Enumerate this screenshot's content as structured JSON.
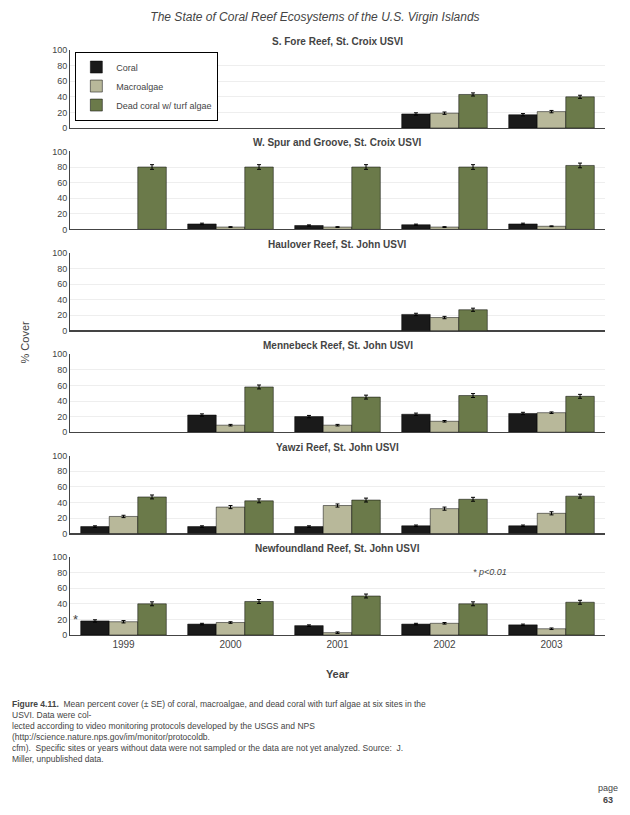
{
  "title": "The State of Coral Reef Ecosystems of the U.S. Virgin Islands",
  "ylabel": "% Cover",
  "xlabel": "Year",
  "annotations": [
    {
      "text": "Figure 4.11."
    },
    {
      "text": "  Mean percent cover (± SE) of coral, macroalgae, and dead coral with turf algae at six sites in the USVI. Data were col-\nlected according to video monitoring protocols developed by the USGS and NPS (http://science.nature.nps.gov/im/monitor/protocoldb.\ncfm).  Specific sites or years without data were not sampled or the data are not yet analyzed. Source:  J. Miller, unpublished data."
    },
    {
      "text": "page"
    },
    {
      "text": "63"
    }
  ],
  "chart_data": [
    {
      "type": "bar",
      "title": "S. Fore Reef, St. Croix USVI",
      "categories": [
        "1999",
        "2000",
        "2001",
        "2002",
        "2003"
      ],
      "series": [
        {
          "name": "Coral",
          "color": "#1a1a1a",
          "values": [
            null,
            null,
            null,
            18,
            17
          ],
          "errors": [
            null,
            null,
            null,
            1.5,
            1.5
          ]
        },
        {
          "name": "Macroalgae",
          "color": "#b8b89a",
          "values": [
            null,
            null,
            null,
            19,
            21
          ],
          "errors": [
            null,
            null,
            null,
            1.5,
            1.5
          ]
        },
        {
          "name": "Dead coral w/ turf algae",
          "color": "#6b7a4a",
          "values": [
            null,
            null,
            null,
            43,
            40
          ],
          "errors": [
            null,
            null,
            null,
            2.0,
            2.0
          ]
        }
      ],
      "ylim": [
        0,
        100
      ],
      "yticks": [
        0,
        20,
        40,
        60,
        80,
        100
      ],
      "grid": true,
      "legend": "upper left",
      "tick_labels": "y"
    },
    {
      "type": "bar",
      "title": "W. Spur and Groove, St. Croix USVI",
      "categories": [
        "1999",
        "2000",
        "2001",
        "2002",
        "2003"
      ],
      "series": [
        {
          "name": "Coral",
          "color": "#1a1a1a",
          "values": [
            null,
            7,
            5,
            6,
            7
          ],
          "errors": [
            null,
            1.0,
            0.8,
            0.8,
            1.0
          ]
        },
        {
          "name": "Macroalgae",
          "color": "#b8b89a",
          "values": [
            null,
            3,
            3,
            3,
            4
          ],
          "errors": [
            null,
            0.5,
            0.5,
            0.5,
            0.5
          ]
        },
        {
          "name": "Dead coral w/ turf algae",
          "color": "#6b7a4a",
          "values": [
            80,
            80,
            80,
            80,
            82
          ],
          "errors": [
            3.0,
            3.0,
            3.0,
            3.0,
            3.0
          ]
        }
      ],
      "ylim": [
        0,
        100
      ],
      "yticks": [
        0,
        20,
        40,
        60,
        80,
        100
      ],
      "grid": true,
      "tick_labels": "y"
    },
    {
      "type": "bar",
      "title": "Haulover Reef, St. John USVI",
      "categories": [
        "1999",
        "2000",
        "2001",
        "2002",
        "2003"
      ],
      "series": [
        {
          "name": "Coral",
          "color": "#1a1a1a",
          "values": [
            null,
            null,
            null,
            21,
            null
          ],
          "errors": [
            null,
            null,
            null,
            1.5,
            null
          ]
        },
        {
          "name": "Macroalgae",
          "color": "#b8b89a",
          "values": [
            null,
            null,
            null,
            17,
            null
          ],
          "errors": [
            null,
            null,
            null,
            1.5,
            null
          ]
        },
        {
          "name": "Dead coral w/ turf algae",
          "color": "#6b7a4a",
          "values": [
            null,
            null,
            null,
            27,
            null
          ],
          "errors": [
            null,
            null,
            null,
            2.0,
            null
          ]
        }
      ],
      "ylim": [
        0,
        100
      ],
      "yticks": [
        0,
        20,
        40,
        60,
        80,
        100
      ],
      "grid": true,
      "tick_labels": "y"
    },
    {
      "type": "bar",
      "title": "Mennebeck Reef, St. John USVI",
      "categories": [
        "1999",
        "2000",
        "2001",
        "2002",
        "2003"
      ],
      "series": [
        {
          "name": "Coral",
          "color": "#1a1a1a",
          "values": [
            null,
            22,
            20,
            23,
            24
          ],
          "errors": [
            null,
            1.5,
            1.5,
            1.5,
            1.5
          ]
        },
        {
          "name": "Macroalgae",
          "color": "#b8b89a",
          "values": [
            null,
            9,
            9,
            14,
            25
          ],
          "errors": [
            null,
            1.0,
            1.0,
            1.0,
            1.0
          ]
        },
        {
          "name": "Dead coral w/ turf algae",
          "color": "#6b7a4a",
          "values": [
            null,
            58,
            45,
            47,
            46
          ],
          "errors": [
            null,
            2.5,
            2.5,
            2.5,
            2.5
          ]
        }
      ],
      "ylim": [
        0,
        100
      ],
      "yticks": [
        0,
        20,
        40,
        60,
        80,
        100
      ],
      "grid": true,
      "tick_labels": "y"
    },
    {
      "type": "bar",
      "title": "Yawzi Reef, St. John USVI",
      "categories": [
        "1999",
        "2000",
        "2001",
        "2002",
        "2003"
      ],
      "series": [
        {
          "name": "Coral",
          "color": "#1a1a1a",
          "values": [
            9,
            9,
            9,
            10,
            10
          ],
          "errors": [
            1.0,
            1.0,
            1.0,
            1.0,
            1.0
          ]
        },
        {
          "name": "Macroalgae",
          "color": "#b8b89a",
          "values": [
            22,
            34,
            36,
            32,
            26
          ],
          "errors": [
            1.5,
            2.0,
            2.0,
            2.0,
            2.0
          ]
        },
        {
          "name": "Dead coral w/ turf algae",
          "color": "#6b7a4a",
          "values": [
            47,
            42,
            43,
            44,
            48
          ],
          "errors": [
            2.5,
            2.5,
            2.5,
            2.5,
            2.5
          ]
        }
      ],
      "ylim": [
        0,
        100
      ],
      "yticks": [
        0,
        20,
        40,
        60,
        80,
        100
      ],
      "grid": true,
      "tick_labels": "y"
    },
    {
      "type": "bar",
      "title": "Newfoundland Reef, St. John USVI",
      "categories": [
        "1999",
        "2000",
        "2001",
        "2002",
        "2003"
      ],
      "series": [
        {
          "name": "Coral",
          "color": "#1a1a1a",
          "values": [
            18,
            14,
            12,
            14,
            13
          ],
          "errors": [
            1.5,
            1.0,
            1.0,
            1.0,
            1.0
          ]
        },
        {
          "name": "Macroalgae",
          "color": "#b8b89a",
          "values": [
            17,
            16,
            3,
            15,
            8
          ],
          "errors": [
            1.5,
            1.0,
            1.0,
            1.0,
            1.0
          ]
        },
        {
          "name": "Dead coral w/ turf algae",
          "color": "#6b7a4a",
          "values": [
            40,
            43,
            50,
            40,
            42
          ],
          "errors": [
            2.5,
            2.5,
            2.5,
            2.5,
            2.5
          ]
        }
      ],
      "ylim": [
        0,
        100
      ],
      "yticks": [
        0,
        20,
        40,
        60,
        80,
        100
      ],
      "grid": true,
      "annotations": [
        {
          "text": "* p<0.01"
        },
        {
          "text": "*",
          "x": "1999",
          "y": 20
        }
      ]
    }
  ]
}
